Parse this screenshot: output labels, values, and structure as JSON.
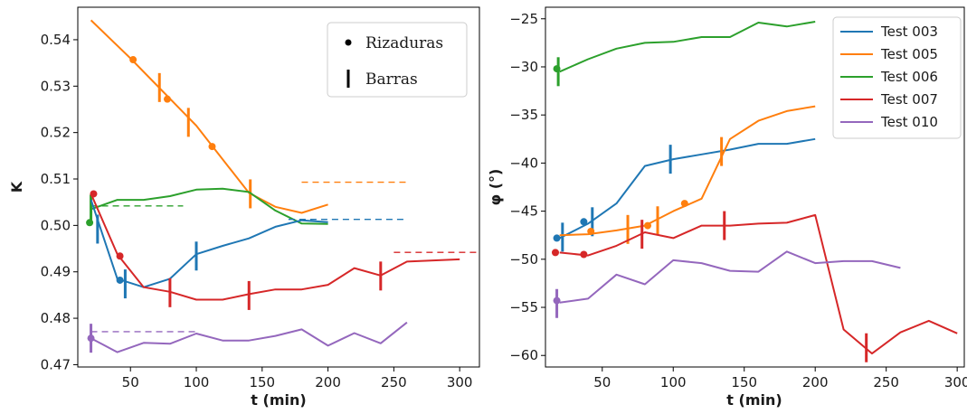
{
  "colors": {
    "test003": "#1f77b4",
    "test005": "#ff7f0e",
    "test006": "#2ca02c",
    "test007": "#d62728",
    "test010": "#9467bd"
  },
  "chart_data": [
    {
      "type": "line",
      "title": "",
      "xlabel": "t (min)",
      "ylabel": "K",
      "xlim": [
        10,
        315
      ],
      "ylim": [
        0.4695,
        0.547
      ],
      "xticks": [
        50,
        100,
        150,
        200,
        250,
        300
      ],
      "yticks": [
        0.47,
        0.48,
        0.49,
        0.5,
        0.51,
        0.52,
        0.53,
        0.54
      ],
      "ytick_labels": [
        "0.47",
        "0.48",
        "0.49",
        "0.50",
        "0.51",
        "0.52",
        "0.53",
        "0.54"
      ],
      "grid": false,
      "legend": {
        "placement": "top-right",
        "entries": [
          {
            "marker": "dot",
            "label": "Rizaduras"
          },
          {
            "marker": "bar",
            "label": "Barras"
          }
        ]
      },
      "series": [
        {
          "key": "test005",
          "x": [
            20,
            50,
            100,
            140,
            160,
            180,
            200
          ],
          "y": [
            0.5442,
            0.536,
            0.5215,
            0.507,
            0.504,
            0.5027,
            0.5045
          ],
          "dots": [
            [
              52,
              0.5357
            ],
            [
              78,
              0.5272
            ],
            [
              112,
              0.517
            ]
          ],
          "bars": [
            [
              72,
              0.5297
            ],
            [
              94,
              0.5222
            ],
            [
              141,
              0.5068
            ]
          ],
          "ref": {
            "y": 0.5093,
            "x": [
              180,
              260
            ]
          }
        },
        {
          "key": "test006",
          "x": [
            20,
            40,
            60,
            80,
            100,
            120,
            140,
            160,
            180,
            200
          ],
          "y": [
            0.5035,
            0.5055,
            0.5055,
            0.5063,
            0.5077,
            0.5079,
            0.5072,
            0.5032,
            0.5004,
            0.5003
          ],
          "dots": [
            [
              19,
              0.5006
            ]
          ],
          "bars": [
            [
              20,
              0.5035
            ]
          ],
          "ref": {
            "y": 0.5042,
            "x": [
              20,
              90
            ]
          }
        },
        {
          "key": "test003",
          "x": [
            20,
            40,
            60,
            80,
            100,
            120,
            140,
            160,
            180,
            200
          ],
          "y": [
            0.5055,
            0.4885,
            0.4867,
            0.4885,
            0.4938,
            0.4956,
            0.4972,
            0.4997,
            0.5011,
            0.5007
          ],
          "dots": [
            [
              42,
              0.4882
            ]
          ],
          "bars": [
            [
              25,
              0.4992
            ],
            [
              46,
              0.4874
            ],
            [
              100,
              0.4934
            ]
          ],
          "ref": {
            "y": 0.5013,
            "x": [
              170,
              260
            ]
          }
        },
        {
          "key": "test007",
          "x": [
            20,
            40,
            60,
            80,
            100,
            120,
            140,
            160,
            180,
            200,
            220,
            240,
            260,
            300
          ],
          "y": [
            0.5068,
            0.4938,
            0.4867,
            0.4857,
            0.484,
            0.484,
            0.4852,
            0.4862,
            0.4862,
            0.4872,
            0.4908,
            0.4892,
            0.4922,
            0.4927
          ],
          "dots": [
            [
              22,
              0.5068
            ],
            [
              42,
              0.4934
            ]
          ],
          "bars": [
            [
              80,
              0.4855
            ],
            [
              140,
              0.4849
            ],
            [
              240,
              0.4891
            ]
          ],
          "ref": {
            "y": 0.4942,
            "x": [
              250,
              315
            ]
          }
        },
        {
          "key": "test010",
          "x": [
            20,
            40,
            60,
            80,
            100,
            120,
            140,
            160,
            180,
            200,
            220,
            240,
            260
          ],
          "y": [
            0.4757,
            0.4727,
            0.4747,
            0.4745,
            0.4767,
            0.4752,
            0.4752,
            0.4762,
            0.4776,
            0.4741,
            0.4768,
            0.4746,
            0.4791
          ],
          "dots": [
            [
              20,
              0.4757
            ]
          ],
          "bars": [
            [
              20,
              0.4757
            ]
          ],
          "ref": {
            "y": 0.4771,
            "x": [
              20,
              100
            ]
          }
        }
      ]
    },
    {
      "type": "line",
      "title": "",
      "xlabel": "t (min)",
      "ylabel": "φ  (°)",
      "xlim": [
        10,
        305
      ],
      "ylim": [
        -61.2,
        -23.8
      ],
      "xticks": [
        50,
        100,
        150,
        200,
        250,
        300
      ],
      "yticks": [
        -25,
        -30,
        -35,
        -40,
        -45,
        -50,
        -55,
        -60
      ],
      "ytick_labels": [
        "−25",
        "−30",
        "−35",
        "−40",
        "−45",
        "−50",
        "−55",
        "−60"
      ],
      "grid": false,
      "legend": {
        "placement": "top-right",
        "entries": [
          {
            "key": "test003",
            "label": "Test 003"
          },
          {
            "key": "test005",
            "label": "Test 005"
          },
          {
            "key": "test006",
            "label": "Test 006"
          },
          {
            "key": "test007",
            "label": "Test 007"
          },
          {
            "key": "test010",
            "label": "Test 010"
          }
        ]
      },
      "series": [
        {
          "key": "test003",
          "x": [
            20,
            40,
            60,
            80,
            100,
            120,
            140,
            160,
            180,
            200
          ],
          "y": [
            -47.8,
            -46.3,
            -44.2,
            -40.3,
            -39.6,
            -39.1,
            -38.6,
            -38.0,
            -38.0,
            -37.5
          ],
          "dots": [
            [
              18,
              -47.8
            ],
            [
              37,
              -46.1
            ]
          ],
          "bars": [
            [
              22,
              -47.7
            ],
            [
              43,
              -46.1
            ],
            [
              98,
              -39.6
            ]
          ]
        },
        {
          "key": "test005",
          "x": [
            20,
            40,
            60,
            80,
            100,
            120,
            140,
            160,
            180,
            200
          ],
          "y": [
            -47.5,
            -47.4,
            -47.0,
            -46.5,
            -45.0,
            -43.7,
            -37.5,
            -35.6,
            -34.6,
            -34.1
          ],
          "dots": [
            [
              42,
              -47.1
            ],
            [
              82,
              -46.5
            ],
            [
              108,
              -44.2
            ]
          ],
          "bars": [
            [
              68,
              -46.9
            ],
            [
              89,
              -46.0
            ],
            [
              134,
              -38.8
            ]
          ]
        },
        {
          "key": "test006",
          "x": [
            20,
            40,
            60,
            80,
            100,
            120,
            140,
            160,
            180,
            200
          ],
          "y": [
            -30.5,
            -29.2,
            -28.1,
            -27.5,
            -27.4,
            -26.9,
            -26.9,
            -25.4,
            -25.8,
            -25.3
          ],
          "dots": [
            [
              18,
              -30.2
            ]
          ],
          "bars": [
            [
              19,
              -30.5
            ]
          ]
        },
        {
          "key": "test007",
          "x": [
            20,
            40,
            60,
            80,
            100,
            120,
            140,
            160,
            180,
            200,
            220,
            240,
            260,
            280,
            300
          ],
          "y": [
            -49.3,
            -49.6,
            -48.6,
            -47.2,
            -47.8,
            -46.5,
            -46.5,
            -46.3,
            -46.2,
            -45.4,
            -57.3,
            -59.8,
            -57.6,
            -56.4,
            -57.7
          ],
          "dots": [
            [
              17,
              -49.3
            ],
            [
              37,
              -49.5
            ]
          ],
          "bars": [
            [
              78,
              -47.4
            ],
            [
              136,
              -46.5
            ],
            [
              236,
              -59.2
            ]
          ]
        },
        {
          "key": "test010",
          "x": [
            20,
            40,
            60,
            80,
            100,
            120,
            140,
            160,
            180,
            200,
            220,
            240,
            260
          ],
          "y": [
            -54.5,
            -54.1,
            -51.6,
            -52.6,
            -50.1,
            -50.4,
            -51.2,
            -51.3,
            -49.2,
            -50.4,
            -50.2,
            -50.2,
            -50.9
          ],
          "dots": [
            [
              18,
              -54.3
            ]
          ],
          "bars": [
            [
              18,
              -54.6
            ]
          ]
        }
      ]
    }
  ]
}
